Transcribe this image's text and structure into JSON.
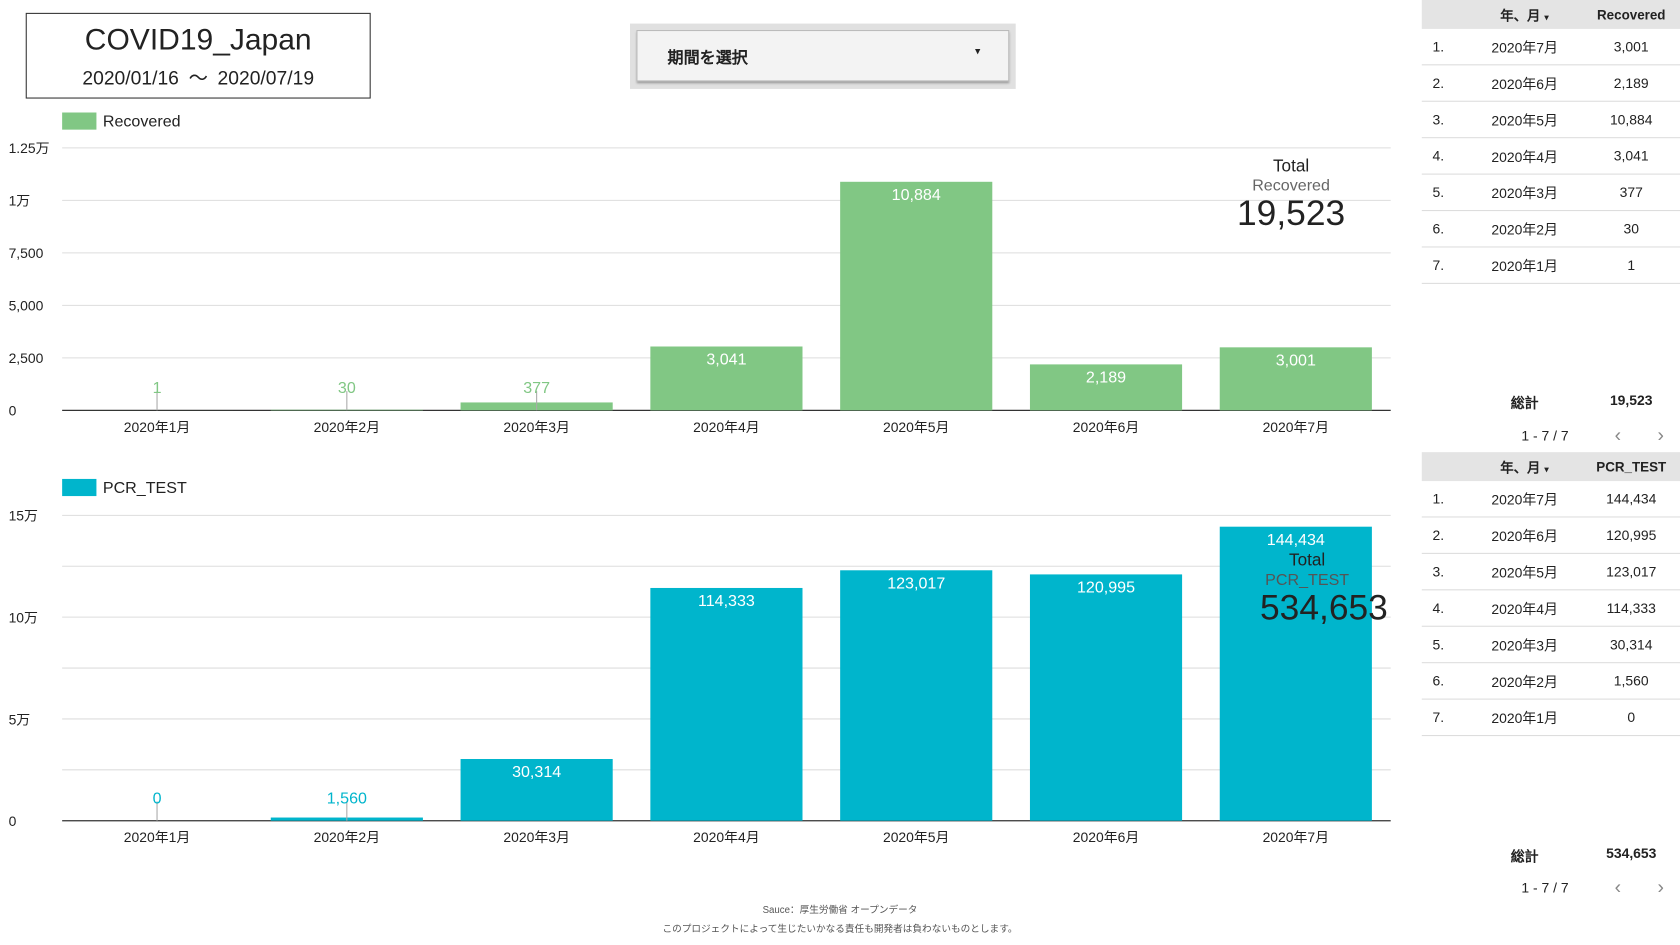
{
  "header": {
    "title": "COVID19_Japan",
    "date_start": "2020/01/16",
    "date_sep": "〜",
    "date_end": "2020/07/19"
  },
  "filter": {
    "label": "期間を選択",
    "caret": "▾"
  },
  "chart_data": [
    {
      "type": "bar",
      "series_name": "Recovered",
      "color": "#81c784",
      "categories": [
        "2020年1月",
        "2020年2月",
        "2020年3月",
        "2020年4月",
        "2020年5月",
        "2020年6月",
        "2020年7月"
      ],
      "values": [
        1,
        30,
        377,
        3041,
        10884,
        2189,
        3001
      ],
      "value_labels": [
        "1",
        "30",
        "377",
        "3,041",
        "10,884",
        "2,189",
        "3,001"
      ],
      "yticks": [
        0,
        2500,
        5000,
        7500,
        10000,
        12500
      ],
      "ytick_labels": [
        "0",
        "2,500",
        "5,000",
        "7,500",
        "1万",
        "1.25万"
      ],
      "ylim": [
        0,
        12500
      ],
      "legend": "top-left"
    },
    {
      "type": "bar",
      "series_name": "PCR_TEST",
      "color": "#00b5cc",
      "categories": [
        "2020年1月",
        "2020年2月",
        "2020年3月",
        "2020年4月",
        "2020年5月",
        "2020年6月",
        "2020年7月"
      ],
      "values": [
        0,
        1560,
        30314,
        114333,
        123017,
        120995,
        144434
      ],
      "value_labels": [
        "0",
        "1,560",
        "30,314",
        "114,333",
        "123,017",
        "120,995",
        "144,434"
      ],
      "yticks": [
        0,
        50000,
        100000,
        150000
      ],
      "ytick_labels": [
        "0",
        "5万",
        "10万",
        "15万"
      ],
      "ylim": [
        0,
        150000
      ],
      "legend": "top-left"
    }
  ],
  "kpi1": {
    "title": "Total",
    "metric": "Recovered",
    "value": "19,523"
  },
  "kpi2": {
    "title": "Total",
    "metric": "PCR_TEST",
    "value": "534,653"
  },
  "table1": {
    "col_date": "年、月",
    "sort": "▾",
    "col_val": "Recovered",
    "rows": [
      [
        "1.",
        "2020年7月",
        "3,001"
      ],
      [
        "2.",
        "2020年6月",
        "2,189"
      ],
      [
        "3.",
        "2020年5月",
        "10,884"
      ],
      [
        "4.",
        "2020年4月",
        "3,041"
      ],
      [
        "5.",
        "2020年3月",
        "377"
      ],
      [
        "6.",
        "2020年2月",
        "30"
      ],
      [
        "7.",
        "2020年1月",
        "1"
      ]
    ],
    "total_label": "総計",
    "total": "19,523",
    "pagination": "1 - 7 / 7",
    "prev": "‹",
    "next": "›"
  },
  "table2": {
    "col_date": "年、月",
    "sort": "▾",
    "col_val": "PCR_TEST",
    "rows": [
      [
        "1.",
        "2020年7月",
        "144,434"
      ],
      [
        "2.",
        "2020年6月",
        "120,995"
      ],
      [
        "3.",
        "2020年5月",
        "123,017"
      ],
      [
        "4.",
        "2020年4月",
        "114,333"
      ],
      [
        "5.",
        "2020年3月",
        "30,314"
      ],
      [
        "6.",
        "2020年2月",
        "1,560"
      ],
      [
        "7.",
        "2020年1月",
        "0"
      ]
    ],
    "total_label": "総計",
    "total": "534,653",
    "pagination": "1 - 7 / 7",
    "prev": "‹",
    "next": "›"
  },
  "footer": {
    "source": "Sauce：厚生労働省 オープンデータ",
    "disclaimer": "このプロジェクトによって生じたいかなる責任も開発者は負わないものとします。"
  }
}
